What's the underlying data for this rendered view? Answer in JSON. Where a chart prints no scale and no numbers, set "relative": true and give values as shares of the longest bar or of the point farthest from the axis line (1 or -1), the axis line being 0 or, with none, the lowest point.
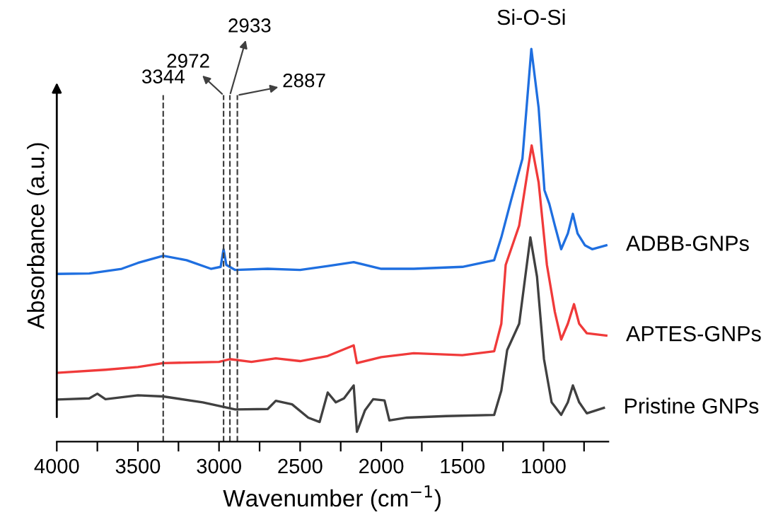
{
  "chart_data": {
    "type": "line",
    "relative": true,
    "xlabel": "Wavenumber (cm$^{−1}$)",
    "ylabel": "Absorbance (a.u.)",
    "xlim": [
      4000,
      600
    ],
    "xticks": [
      4000,
      {
        "value": 3750,
        "label": null
      },
      3500,
      {
        "value": 3250,
        "label": null
      },
      3000,
      {
        "value": 2750,
        "label": null
      },
      2500,
      {
        "value": 2250,
        "label": null
      },
      2000,
      {
        "value": 1750,
        "label": null
      },
      1500,
      {
        "value": 1250,
        "label": null
      },
      1000,
      {
        "value": 750,
        "label": null
      }
    ],
    "legend": false,
    "grid": false,
    "line_style": "solid",
    "marker": "none",
    "series": [
      {
        "name": "ADBB-GNPs",
        "color": "#1f6fe0",
        "x": [
          4000,
          3800,
          3600,
          3500,
          3344,
          3200,
          3050,
          2990,
          2972,
          2955,
          2900,
          2700,
          2500,
          2330,
          2170,
          2000,
          1800,
          1500,
          1304,
          1260,
          1199,
          1130,
          1075,
          1030,
          994,
          964,
          930,
          891,
          850,
          819,
          790,
          745,
          700,
          613
        ],
        "values": [
          0.427,
          0.428,
          0.44,
          0.455,
          0.473,
          0.462,
          0.44,
          0.445,
          0.49,
          0.45,
          0.437,
          0.44,
          0.437,
          0.447,
          0.457,
          0.44,
          0.44,
          0.445,
          0.462,
          0.52,
          0.616,
          0.72,
          1.0,
          0.85,
          0.64,
          0.605,
          0.55,
          0.49,
          0.53,
          0.58,
          0.53,
          0.5,
          0.49,
          0.5
        ]
      },
      {
        "name": "APTES-GNPs",
        "color": "#f03a3a",
        "x": [
          4000,
          3700,
          3500,
          3344,
          3000,
          2933,
          2800,
          2650,
          2500,
          2330,
          2170,
          2150,
          2000,
          1800,
          1500,
          1304,
          1260,
          1233,
          1150,
          1073,
          1030,
          979,
          930,
          891,
          850,
          812,
          780,
          733,
          613
        ],
        "values": [
          0.175,
          0.183,
          0.19,
          0.2,
          0.203,
          0.21,
          0.203,
          0.212,
          0.205,
          0.218,
          0.245,
          0.2,
          0.215,
          0.225,
          0.22,
          0.23,
          0.3,
          0.45,
          0.55,
          0.754,
          0.66,
          0.45,
          0.33,
          0.26,
          0.3,
          0.35,
          0.3,
          0.276,
          0.27
        ]
      },
      {
        "name": "Pristine GNPs",
        "color": "#404040",
        "x": [
          4000,
          3800,
          3750,
          3700,
          3500,
          3344,
          3100,
          2900,
          2700,
          2650,
          2550,
          2450,
          2380,
          2330,
          2280,
          2230,
          2170,
          2150,
          2100,
          2050,
          1980,
          1950,
          1842,
          1600,
          1304,
          1260,
          1224,
          1150,
          1081,
          1040,
          997,
          950,
          891,
          850,
          819,
          780,
          733,
          628
        ],
        "values": [
          0.107,
          0.11,
          0.122,
          0.108,
          0.118,
          0.115,
          0.1,
          0.082,
          0.083,
          0.104,
          0.095,
          0.061,
          0.05,
          0.125,
          0.1,
          0.11,
          0.143,
          0.025,
          0.08,
          0.108,
          0.105,
          0.054,
          0.061,
          0.065,
          0.068,
          0.13,
          0.233,
          0.3,
          0.52,
          0.42,
          0.21,
          0.1,
          0.068,
          0.1,
          0.143,
          0.1,
          0.072,
          0.086
        ]
      }
    ],
    "ref_lines": [
      {
        "axis": "x",
        "value": 3344,
        "label": "3344",
        "line_style": "dashed",
        "color": "#404040"
      },
      {
        "axis": "x",
        "value": 2972,
        "label": "2972",
        "line_style": "dashed",
        "color": "#404040"
      },
      {
        "axis": "x",
        "value": 2933,
        "label": "2933",
        "line_style": "dashed",
        "color": "#404040"
      },
      {
        "axis": "x",
        "value": 2887,
        "label": "2887",
        "line_style": "dashed",
        "color": "#404040"
      }
    ],
    "annotations": [
      {
        "text": "Si-O-Si",
        "x": 1075,
        "y": 1.0
      }
    ]
  }
}
